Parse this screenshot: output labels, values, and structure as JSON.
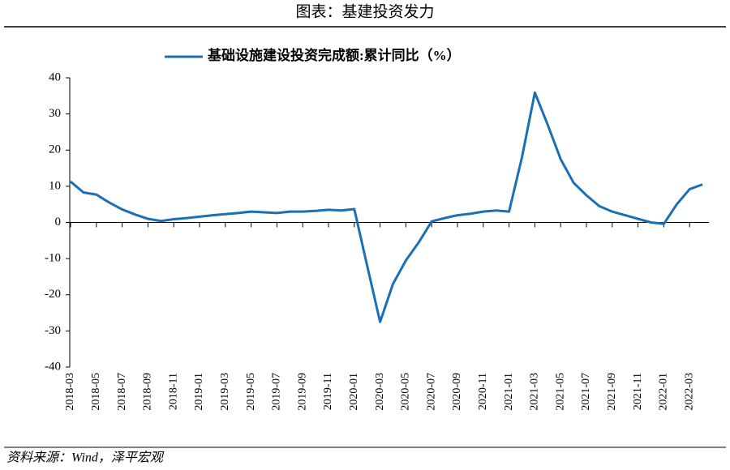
{
  "chart_data": {
    "type": "line",
    "title": "图表：基建投资发力",
    "source": "资料来源：Wind，泽平宏观",
    "categories": [
      "2018-03",
      null,
      "2018-05",
      null,
      "2018-07",
      null,
      "2018-09",
      null,
      "2018-11",
      null,
      "2019-01",
      null,
      "2019-03",
      null,
      "2019-05",
      null,
      "2019-07",
      null,
      "2019-09",
      null,
      "2019-11",
      null,
      "2020-01",
      null,
      "2020-03",
      null,
      "2020-05",
      null,
      "2020-07",
      null,
      "2020-09",
      null,
      "2020-11",
      null,
      "2021-01",
      null,
      "2021-03",
      null,
      "2021-05",
      null,
      "2021-07",
      null,
      "2021-09",
      null,
      "2021-11",
      null,
      "2022-01",
      null,
      "2022-03",
      null
    ],
    "series": [
      {
        "name": "基础设施建设投资完成额:累计同比（%）",
        "color": "#1b6fb5",
        "values": [
          11.3,
          8.3,
          7.7,
          5.5,
          3.6,
          2.2,
          1.0,
          0.4,
          0.9,
          1.2,
          1.6,
          2.0,
          2.3,
          2.6,
          3.0,
          2.8,
          2.6,
          3.0,
          3.0,
          3.2,
          3.5,
          3.3,
          3.7,
          -12,
          -27.5,
          -17,
          -10.5,
          -5.5,
          0.3,
          1.2,
          2.0,
          2.4,
          3.0,
          3.3,
          3.0,
          18,
          35.9,
          27,
          17.5,
          11,
          7.5,
          4.5,
          3.0,
          2.0,
          1.0,
          0,
          -0.4,
          5,
          9.2,
          10.5
        ]
      }
    ],
    "ylim": [
      -40,
      40
    ],
    "yticks": [
      40,
      30,
      20,
      10,
      0,
      -10,
      -20,
      -30,
      -40
    ],
    "legend": "top"
  }
}
